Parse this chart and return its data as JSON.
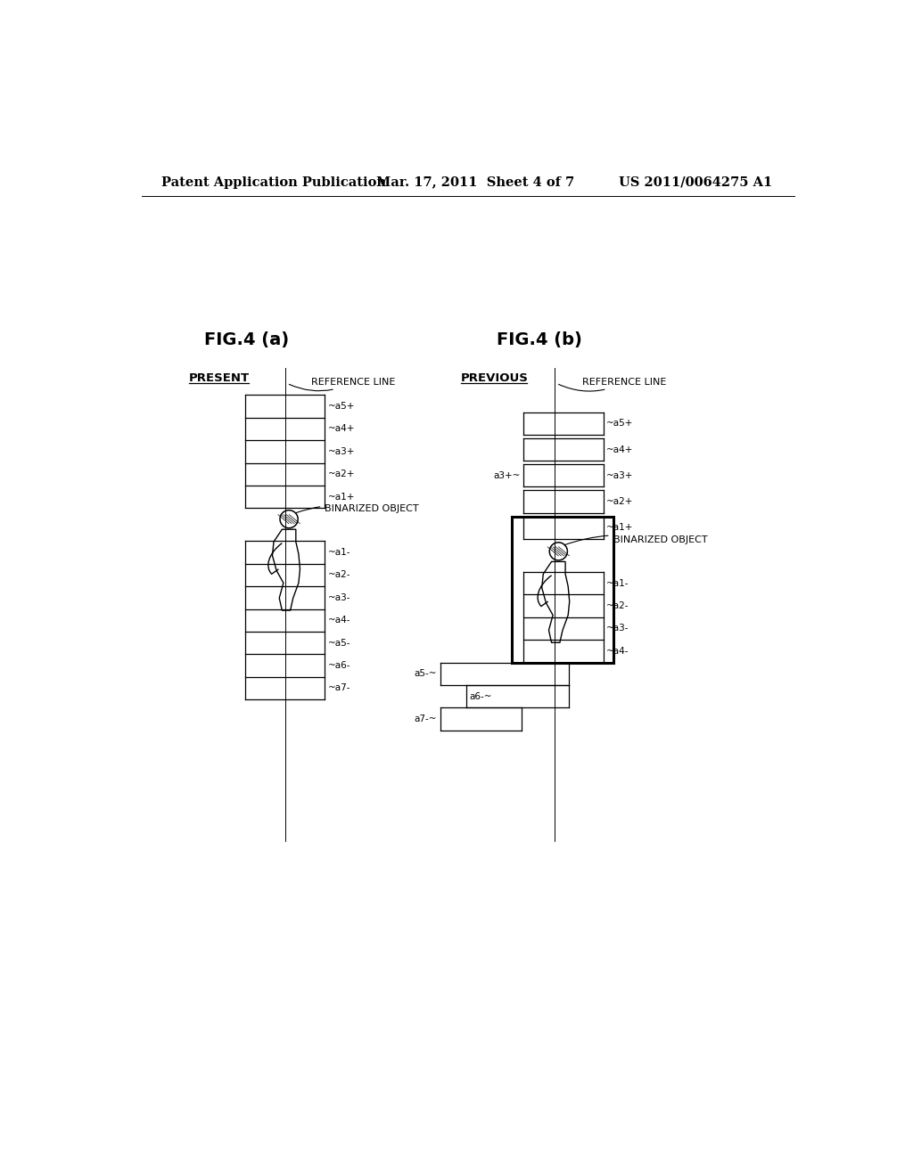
{
  "bg_color": "#ffffff",
  "header_left": "Patent Application Publication",
  "header_mid": "Mar. 17, 2011  Sheet 4 of 7",
  "header_right": "US 2011/0064275 A1",
  "fig_a_title": "FIG.4 (a)",
  "fig_b_title": "FIG.4 (b)",
  "label_present": "PRESENT",
  "label_previous": "PREVIOUS",
  "label_ref_line": "REFERENCE LINE",
  "label_binarized": "BINARIZED OBJECT",
  "row_labels_plus": [
    "a5+",
    "a4+",
    "a3+",
    "a2+",
    "a1+"
  ],
  "row_labels_minus": [
    "a1-",
    "a2-",
    "a3-",
    "a4-",
    "a5-",
    "a6-",
    "a7-"
  ],
  "row_labels_b_plus": [
    "a5+",
    "a4+",
    "a3+",
    "a2+",
    "a1+"
  ],
  "row_labels_b_minus": [
    "a1-",
    "a2-",
    "a3-",
    "a4-"
  ],
  "label_a5_b": "a5-",
  "label_a6_b": "a6-",
  "label_a7_b": "a7-",
  "label_a3_b_left": "a3+"
}
